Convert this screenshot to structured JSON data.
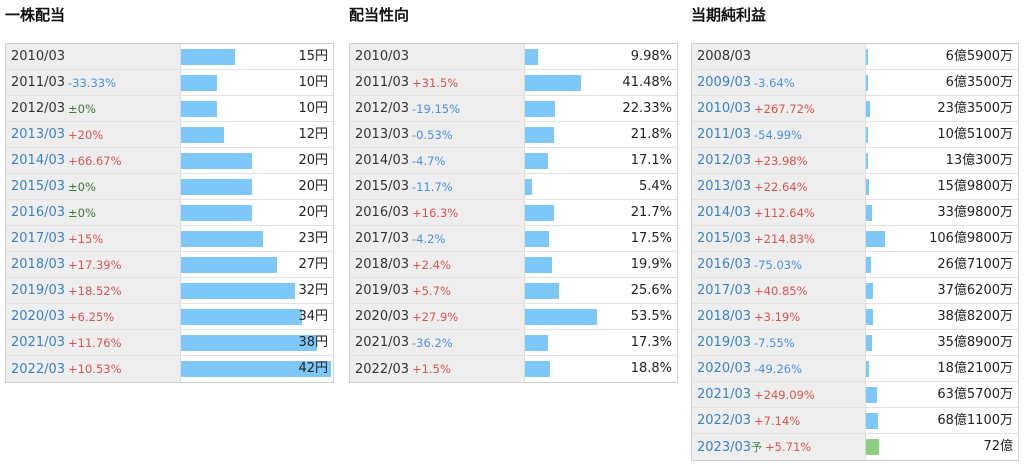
{
  "panels": [
    {
      "title": "一株配当",
      "max": 42,
      "rows": [
        {
          "year": "2010/03",
          "change": "",
          "dir": "",
          "value": "15円",
          "amount": 15,
          "link": false
        },
        {
          "year": "2011/03",
          "change": "-33.33%",
          "dir": "down",
          "value": "10円",
          "amount": 10,
          "link": false
        },
        {
          "year": "2012/03",
          "change": "±0%",
          "dir": "flat",
          "value": "10円",
          "amount": 10,
          "link": false
        },
        {
          "year": "2013/03",
          "change": "+20%",
          "dir": "up",
          "value": "12円",
          "amount": 12,
          "link": true
        },
        {
          "year": "2014/03",
          "change": "+66.67%",
          "dir": "up",
          "value": "20円",
          "amount": 20,
          "link": true
        },
        {
          "year": "2015/03",
          "change": "±0%",
          "dir": "flat",
          "value": "20円",
          "amount": 20,
          "link": true
        },
        {
          "year": "2016/03",
          "change": "±0%",
          "dir": "flat",
          "value": "20円",
          "amount": 20,
          "link": true
        },
        {
          "year": "2017/03",
          "change": "+15%",
          "dir": "up",
          "value": "23円",
          "amount": 23,
          "link": true
        },
        {
          "year": "2018/03",
          "change": "+17.39%",
          "dir": "up",
          "value": "27円",
          "amount": 27,
          "link": true
        },
        {
          "year": "2019/03",
          "change": "+18.52%",
          "dir": "up",
          "value": "32円",
          "amount": 32,
          "link": true
        },
        {
          "year": "2020/03",
          "change": "+6.25%",
          "dir": "up",
          "value": "34円",
          "amount": 34,
          "link": true
        },
        {
          "year": "2021/03",
          "change": "+11.76%",
          "dir": "up",
          "value": "38円",
          "amount": 38,
          "link": true
        },
        {
          "year": "2022/03",
          "change": "+10.53%",
          "dir": "up",
          "value": "42円",
          "amount": 42,
          "link": true
        }
      ]
    },
    {
      "title": "配当性向",
      "max": 53.5,
      "rows": [
        {
          "year": "2010/03",
          "change": "",
          "dir": "",
          "value": "9.98%",
          "amount": 9.98,
          "link": false
        },
        {
          "year": "2011/03",
          "change": "+31.5%",
          "dir": "up",
          "value": "41.48%",
          "amount": 41.48,
          "link": false
        },
        {
          "year": "2012/03",
          "change": "-19.15%",
          "dir": "down",
          "value": "22.33%",
          "amount": 22.33,
          "link": false
        },
        {
          "year": "2013/03",
          "change": "-0.53%",
          "dir": "down",
          "value": "21.8%",
          "amount": 21.8,
          "link": false
        },
        {
          "year": "2014/03",
          "change": "-4.7%",
          "dir": "down",
          "value": "17.1%",
          "amount": 17.1,
          "link": false
        },
        {
          "year": "2015/03",
          "change": "-11.7%",
          "dir": "down",
          "value": "5.4%",
          "amount": 5.4,
          "link": false
        },
        {
          "year": "2016/03",
          "change": "+16.3%",
          "dir": "up",
          "value": "21.7%",
          "amount": 21.7,
          "link": false
        },
        {
          "year": "2017/03",
          "change": "-4.2%",
          "dir": "down",
          "value": "17.5%",
          "amount": 17.5,
          "link": false
        },
        {
          "year": "2018/03",
          "change": "+2.4%",
          "dir": "up",
          "value": "19.9%",
          "amount": 19.9,
          "link": false
        },
        {
          "year": "2019/03",
          "change": "+5.7%",
          "dir": "up",
          "value": "25.6%",
          "amount": 25.6,
          "link": false
        },
        {
          "year": "2020/03",
          "change": "+27.9%",
          "dir": "up",
          "value": "53.5%",
          "amount": 53.5,
          "link": false
        },
        {
          "year": "2021/03",
          "change": "-36.2%",
          "dir": "down",
          "value": "17.3%",
          "amount": 17.3,
          "link": false
        },
        {
          "year": "2022/03",
          "change": "+1.5%",
          "dir": "up",
          "value": "18.8%",
          "amount": 18.8,
          "link": false
        }
      ]
    },
    {
      "title": "当期純利益",
      "max": 106.98,
      "rows": [
        {
          "year": "2008/03",
          "change": "",
          "dir": "",
          "value": "6億5900万",
          "amount": 6.59,
          "link": false
        },
        {
          "year": "2009/03",
          "change": "-3.64%",
          "dir": "down",
          "value": "6億3500万",
          "amount": 6.35,
          "link": true
        },
        {
          "year": "2010/03",
          "change": "+267.72%",
          "dir": "up",
          "value": "23億3500万",
          "amount": 23.35,
          "link": true
        },
        {
          "year": "2011/03",
          "change": "-54.99%",
          "dir": "down",
          "value": "10億5100万",
          "amount": 10.51,
          "link": true
        },
        {
          "year": "2012/03",
          "change": "+23.98%",
          "dir": "up",
          "value": "13億300万",
          "amount": 13.03,
          "link": true
        },
        {
          "year": "2013/03",
          "change": "+22.64%",
          "dir": "up",
          "value": "15億9800万",
          "amount": 15.98,
          "link": true
        },
        {
          "year": "2014/03",
          "change": "+112.64%",
          "dir": "up",
          "value": "33億9800万",
          "amount": 33.98,
          "link": true
        },
        {
          "year": "2015/03",
          "change": "+214.83%",
          "dir": "up",
          "value": "106億9800万",
          "amount": 106.98,
          "link": true
        },
        {
          "year": "2016/03",
          "change": "-75.03%",
          "dir": "down",
          "value": "26億7100万",
          "amount": 26.71,
          "link": true
        },
        {
          "year": "2017/03",
          "change": "+40.85%",
          "dir": "up",
          "value": "37億6200万",
          "amount": 37.62,
          "link": true
        },
        {
          "year": "2018/03",
          "change": "+3.19%",
          "dir": "up",
          "value": "38億8200万",
          "amount": 38.82,
          "link": true
        },
        {
          "year": "2019/03",
          "change": "-7.55%",
          "dir": "down",
          "value": "35億8900万",
          "amount": 35.89,
          "link": true
        },
        {
          "year": "2020/03",
          "change": "-49.26%",
          "dir": "down",
          "value": "18億2100万",
          "amount": 18.21,
          "link": true
        },
        {
          "year": "2021/03",
          "change": "+249.09%",
          "dir": "up",
          "value": "63億5700万",
          "amount": 63.57,
          "link": true
        },
        {
          "year": "2022/03",
          "change": "+7.14%",
          "dir": "up",
          "value": "68億1100万",
          "amount": 68.11,
          "link": true
        },
        {
          "year": "2023/03",
          "forecast_mark": "予",
          "change": "+5.71%",
          "dir": "up",
          "value": "72億",
          "amount": 72,
          "link": true,
          "forecast": true
        }
      ]
    }
  ],
  "colors": {
    "bar": "#7dc8f8",
    "forecast_bar": "#8ccf80",
    "up": "#d9534f",
    "down": "#4a90e2",
    "flat": "#3a7a3a",
    "link": "#3b82c4"
  }
}
